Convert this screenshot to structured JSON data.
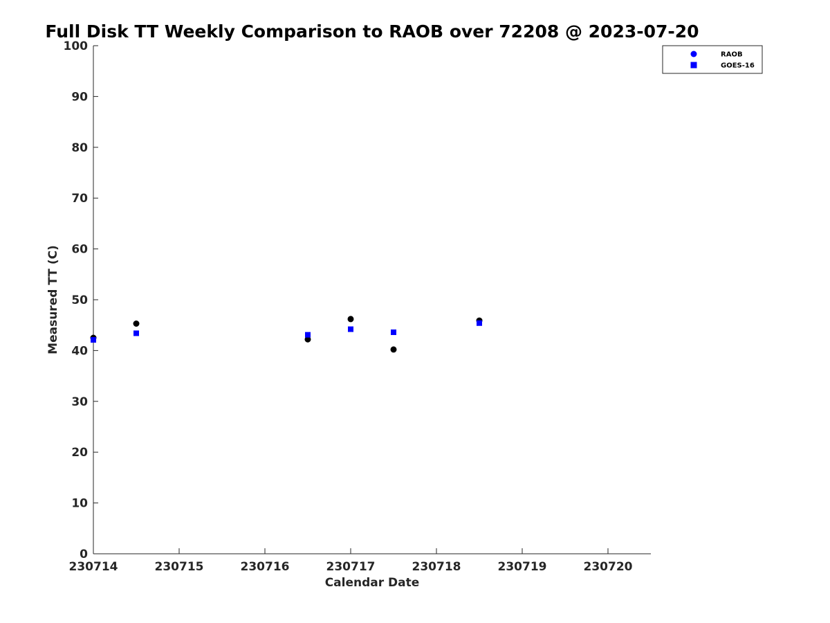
{
  "chart_data": {
    "type": "scatter",
    "title": "Full Disk TT Weekly Comparison to RAOB over 72208 @ 2023-07-20",
    "xlabel": "Calendar Date",
    "ylabel": "Measured TT (C)",
    "x_tick_labels": [
      "230714",
      "230715",
      "230716",
      "230717",
      "230718",
      "230719",
      "230720"
    ],
    "x_ticks": [
      "2023-07-14",
      "2023-07-15",
      "2023-07-16",
      "2023-07-17",
      "2023-07-18",
      "2023-07-19",
      "2023-07-20"
    ],
    "xlim": [
      "2023-07-14 00:00",
      "2023-07-20 12:00"
    ],
    "ylim": [
      0,
      100
    ],
    "y_ticks": [
      0,
      10,
      20,
      30,
      40,
      50,
      60,
      70,
      80,
      90,
      100
    ],
    "grid": false,
    "legend_position": "top-right",
    "series": [
      {
        "name": "RAOB",
        "marker": "circle",
        "legend_color": "#0000ff",
        "color": "#000000",
        "x": [
          "2023-07-14 00:00",
          "2023-07-14 12:00",
          "2023-07-16 12:00",
          "2023-07-17 00:00",
          "2023-07-17 12:00",
          "2023-07-18 12:00"
        ],
        "y": [
          42.5,
          45.3,
          42.2,
          46.2,
          40.2,
          45.9
        ]
      },
      {
        "name": "GOES-16",
        "marker": "square",
        "legend_color": "#0000ff",
        "color": "#0000ff",
        "x": [
          "2023-07-14 00:00",
          "2023-07-14 12:00",
          "2023-07-16 12:00",
          "2023-07-17 00:00",
          "2023-07-17 12:00",
          "2023-07-18 12:00"
        ],
        "y": [
          42.1,
          43.4,
          43.1,
          44.2,
          43.6,
          45.4
        ]
      }
    ]
  }
}
